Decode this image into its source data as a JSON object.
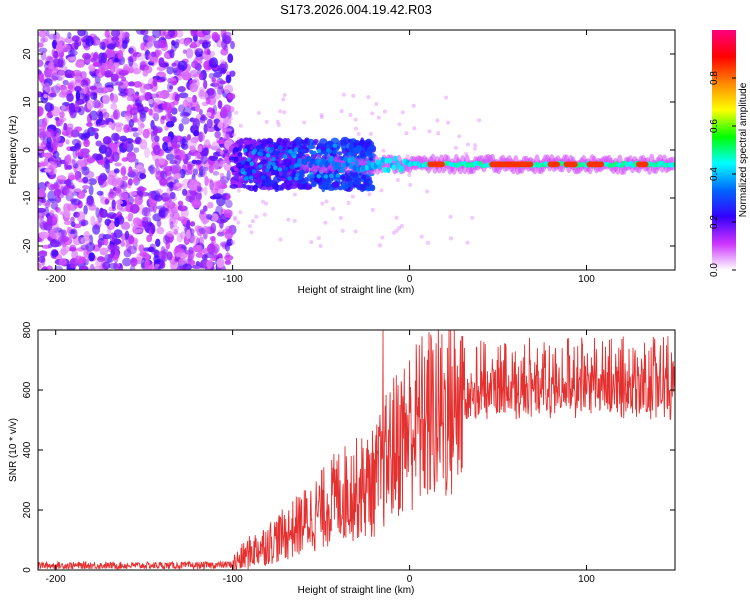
{
  "title": "S173.2026.004.19.42.R03",
  "colors": {
    "spectrogram_low": "#a77be0",
    "spectrogram_mid": "#5010e0",
    "snr_line": "#e53030",
    "axis": "#000000"
  },
  "chart_data": [
    {
      "type": "heatmap",
      "name": "spectrogram",
      "xlabel": "Height of straight line (km)",
      "ylabel": "Frequency (Hz)",
      "xlim": [
        -210,
        150
      ],
      "ylim": [
        -25,
        25
      ],
      "x_ticks": [
        -200,
        -100,
        0,
        100
      ],
      "x_tick_labels": [
        "-200",
        "-100",
        "0",
        "100"
      ],
      "y_ticks": [
        -20,
        -10,
        0,
        10,
        20
      ],
      "y_tick_labels": [
        "-20",
        "-10",
        "0",
        "10",
        "20"
      ],
      "ridge": {
        "description": "coherent signal line",
        "x_range": [
          -100,
          150
        ],
        "frequency_hz": -3,
        "peak_segments": [
          {
            "x_start": 10,
            "x_end": 20
          },
          {
            "x_start": 45,
            "x_end": 70
          },
          {
            "x_start": 78,
            "x_end": 85
          },
          {
            "x_start": 87,
            "x_end": 95
          },
          {
            "x_start": 100,
            "x_end": 110
          },
          {
            "x_start": 128,
            "x_end": 135
          }
        ]
      },
      "noise_region": {
        "x_range": [
          -210,
          -100
        ],
        "freq_range": [
          -25,
          25
        ]
      },
      "transition_cloud": {
        "x_range": [
          -100,
          -20
        ],
        "freq_range": [
          -8,
          2
        ]
      },
      "colorbar": {
        "label": "Normalized spectral amplitude",
        "range": [
          0,
          1
        ],
        "ticks": [
          0,
          0.2,
          0.4,
          0.6,
          0.8
        ],
        "tick_labels": [
          "0.0",
          "0.2",
          "0.4",
          "0.6",
          "0.8"
        ],
        "stops": [
          "#ffffff",
          "#cc33ff",
          "#3300ff",
          "#0066ff",
          "#00ffff",
          "#00ff00",
          "#ffff00",
          "#ff8800",
          "#ff0000",
          "#ff0080"
        ]
      }
    },
    {
      "type": "line",
      "name": "snr",
      "xlabel": "Height of straight line (km)",
      "ylabel": "SNR (10 * v/v)",
      "xlim": [
        -210,
        150
      ],
      "ylim": [
        0,
        800
      ],
      "x_ticks": [
        -200,
        -100,
        0,
        100
      ],
      "x_tick_labels": [
        "-200",
        "-100",
        "0",
        "100"
      ],
      "y_ticks": [
        0,
        200,
        400,
        600,
        800
      ],
      "y_tick_labels": [
        "0",
        "200",
        "400",
        "600",
        "800"
      ],
      "series": [
        {
          "name": "SNR",
          "x": [
            -210,
            -180,
            -150,
            -120,
            -100,
            -90,
            -80,
            -70,
            -60,
            -50,
            -40,
            -30,
            -20,
            -10,
            0,
            10,
            20,
            30,
            40,
            60,
            80,
            100,
            120,
            150
          ],
          "y": [
            15,
            15,
            15,
            15,
            18,
            60,
            90,
            120,
            160,
            200,
            250,
            270,
            290,
            400,
            470,
            510,
            530,
            560,
            590,
            600,
            600,
            600,
            600,
            600
          ]
        }
      ],
      "spikes": [
        {
          "x": -15,
          "y": 800
        },
        {
          "x": 30,
          "y": 780
        },
        {
          "x": 120,
          "y": 770
        }
      ]
    }
  ]
}
